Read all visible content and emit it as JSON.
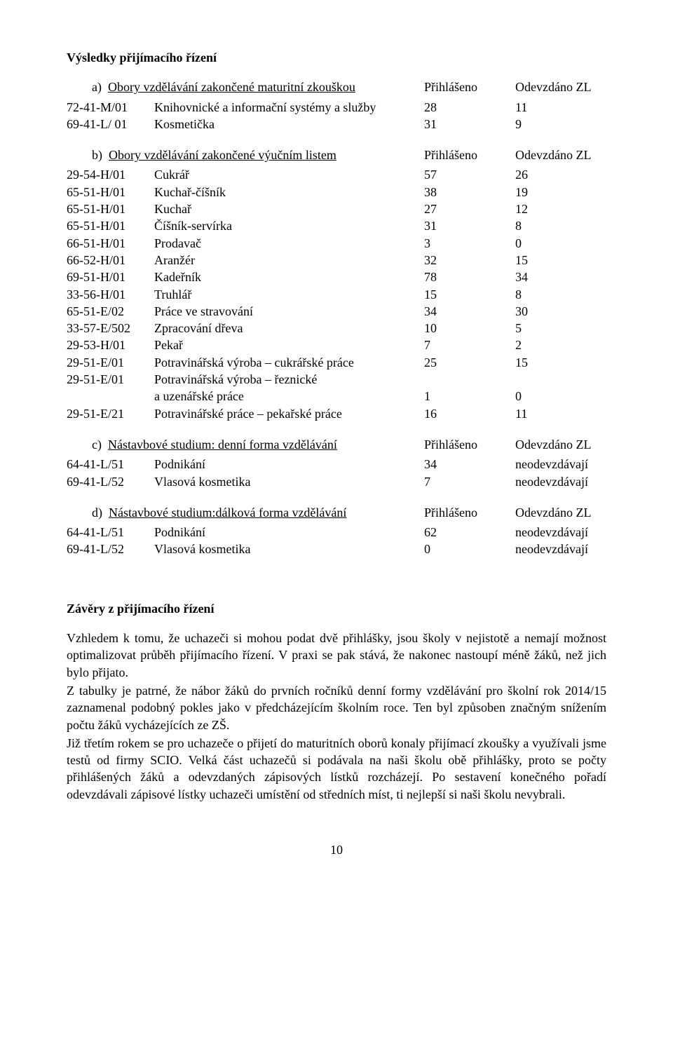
{
  "title": "Výsledky přijímacího řízení",
  "section_a": {
    "header_label": "a)",
    "header_text": "Obory vzdělávání zakončené maturitní zkouškou",
    "col1": "Přihlášeno",
    "col2": "Odevzdáno ZL",
    "rows": [
      {
        "code": "72-41-M/01",
        "name": "Knihovnické a informační systémy a služby",
        "c1": "28",
        "c2": "11"
      },
      {
        "code": "69-41-L/ 01",
        "name": "Kosmetička",
        "c1": "31",
        "c2": "9"
      }
    ]
  },
  "section_b": {
    "header_label": "b)",
    "header_text": "Obory vzdělávání zakončené výučním listem",
    "col1": "Přihlášeno",
    "col2": "Odevzdáno ZL",
    "rows": [
      {
        "code": "29-54-H/01",
        "name": "Cukrář",
        "c1": "57",
        "c2": "26"
      },
      {
        "code": "65-51-H/01",
        "name": "Kuchař-číšník",
        "c1": "38",
        "c2": "19"
      },
      {
        "code": "65-51-H/01",
        "name": "Kuchař",
        "c1": "27",
        "c2": "12"
      },
      {
        "code": "65-51-H/01",
        "name": "Číšník-servírka",
        "c1": "31",
        "c2": "8"
      },
      {
        "code": "66-51-H/01",
        "name": "Prodavač",
        "c1": "3",
        "c2": "0"
      },
      {
        "code": "66-52-H/01",
        "name": "Aranžér",
        "c1": "32",
        "c2": "15"
      },
      {
        "code": "69-51-H/01",
        "name": "Kadeřník",
        "c1": "78",
        "c2": "34"
      },
      {
        "code": "33-56-H/01",
        "name": "Truhlář",
        "c1": "15",
        "c2": "8"
      },
      {
        "code": "65-51-E/02",
        "name": "Práce ve stravování",
        "c1": "34",
        "c2": "30"
      },
      {
        "code": "33-57-E/502",
        "name": "Zpracování dřeva",
        "c1": "10",
        "c2": "5"
      },
      {
        "code": "29-53-H/01",
        "name": "Pekař",
        "c1": "7",
        "c2": "2"
      },
      {
        "code": "29-51-E/01",
        "name": "Potravinářská výroba – cukrářské práce",
        "c1": "25",
        "c2": "15"
      }
    ],
    "multi": {
      "code": "29-51-E/01",
      "line1": "Potravinářská výroba – řeznické",
      "line2": "a uzenářské práce",
      "c1": "1",
      "c2": "0"
    },
    "last": {
      "code": "29-51-E/21",
      "name": "Potravinářské práce – pekařské práce",
      "c1": "16",
      "c2": "11"
    }
  },
  "section_c": {
    "header_label": "c)",
    "header_text": "Nástavbové studium: denní forma vzdělávání",
    "col1": "Přihlášeno",
    "col2": "Odevzdáno ZL",
    "rows": [
      {
        "code": "64-41-L/51",
        "name": "Podnikání",
        "c1": "34",
        "c2": "neodevzdávají"
      },
      {
        "code": "69-41-L/52",
        "name": "Vlasová kosmetika",
        "c1": "7",
        "c2": "neodevzdávají"
      }
    ]
  },
  "section_d": {
    "header_label": "d)",
    "header_text": "Nástavbové studium:dálková forma vzdělávání",
    "col1": "Přihlášeno",
    "col2": "Odevzdáno ZL",
    "rows": [
      {
        "code": "64-41-L/51",
        "name": "Podnikání",
        "c1": "62",
        "c2": "neodevzdávají"
      },
      {
        "code": "69-41-L/52",
        "name": "Vlasová kosmetika",
        "c1": "0",
        "c2": "neodevzdávají"
      }
    ]
  },
  "conclusion_title": "Závěry z přijímacího řízení",
  "para1": "Vzhledem k tomu, že uchazeči si mohou podat dvě přihlášky, jsou školy v nejistotě a nemají možnost optimalizovat průběh přijímacího řízení. V praxi se pak stává, že nakonec nastoupí méně žáků, než jich bylo přijato.",
  "para2": "Z tabulky je patrné, že nábor žáků do prvních ročníků denní formy vzdělávání pro školní rok 2014/15 zaznamenal podobný pokles jako v předcházejícím školním roce. Ten byl způsoben značným snížením počtu žáků vycházejících ze ZŠ.",
  "para3": "Již třetím rokem se pro uchazeče o přijetí do maturitních oborů konaly přijímací zkoušky a využívali jsme testů od firmy SCIO. Velká část uchazečů si podávala na naši školu obě přihlášky, proto se počty přihlášených žáků a odevzdaných zápisových lístků rozcházejí. Po sestavení konečného pořadí odevzdávali zápisové lístky uchazeči umístění od středních míst, ti nejlepší si naši školu nevybrali.",
  "page_number": "10"
}
